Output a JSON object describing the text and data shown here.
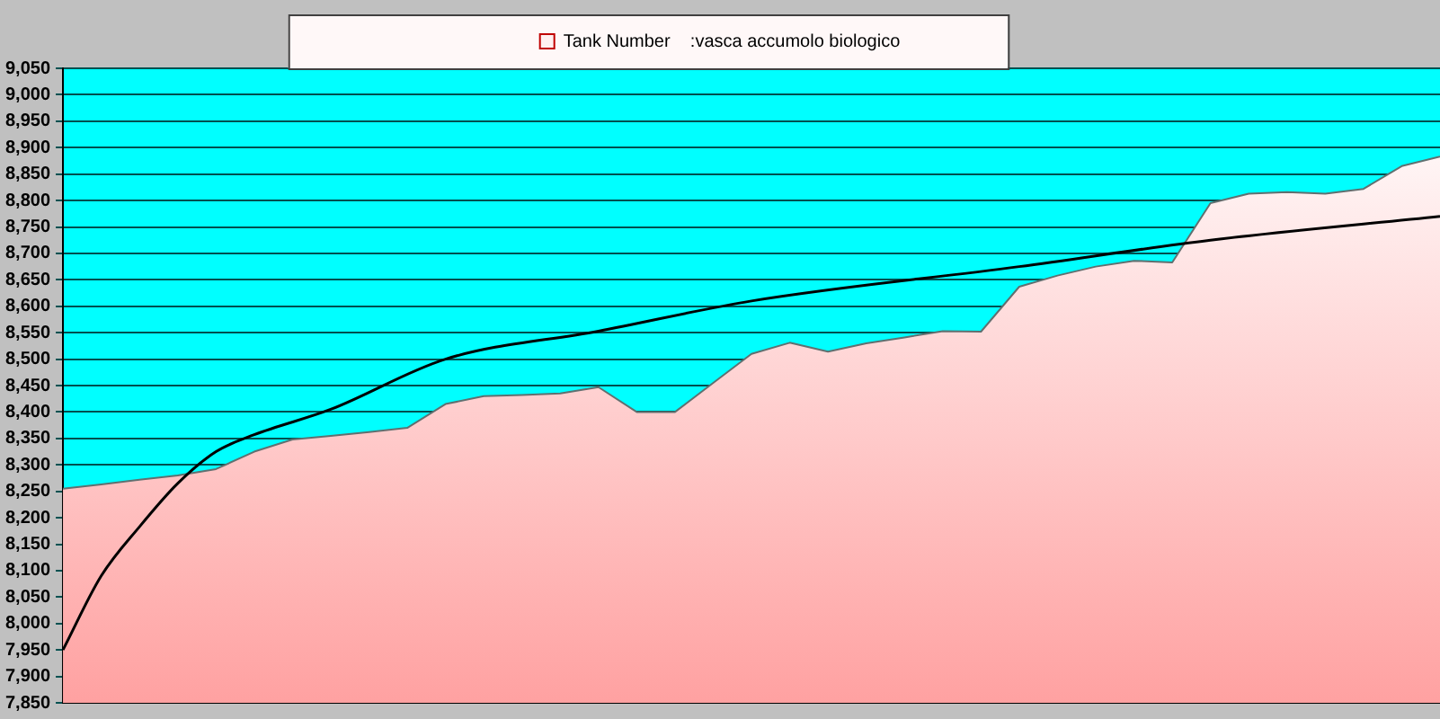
{
  "chart_data": {
    "type": "area",
    "categories": [
      null,
      null,
      null,
      null,
      null,
      null,
      null,
      null,
      null,
      null,
      null,
      null,
      null,
      null,
      null,
      null,
      null,
      null,
      null,
      null,
      null,
      null,
      null,
      null,
      null,
      null,
      null,
      null,
      null,
      null,
      null,
      null,
      null,
      null,
      null,
      null,
      null
    ],
    "series": [
      {
        "name": "Tank Number    :vasca accumolo biologico",
        "color": "#ffa0a0",
        "values": [
          8255,
          8263,
          8272,
          8280,
          8292,
          8325,
          8348,
          8355,
          8362,
          8370,
          8415,
          8430,
          8432,
          8435,
          8447,
          8400,
          8400,
          8455,
          8510,
          8531,
          8514,
          8530,
          8541,
          8553,
          8552,
          8637,
          8658,
          8675,
          8686,
          8683,
          8795,
          8813,
          8816,
          8813,
          8822,
          8865,
          8883
        ]
      },
      {
        "type": "line",
        "color": "#000000",
        "values": [
          7950,
          8090,
          8183,
          8265,
          8325,
          8357,
          null,
          8405,
          null,
          null,
          8500,
          null,
          null,
          null,
          8553,
          null,
          null,
          null,
          8610,
          null,
          null,
          null,
          null,
          null,
          null,
          8675,
          null,
          null,
          null,
          null,
          8725,
          null,
          null,
          null,
          null,
          null,
          8770
        ]
      }
    ],
    "ylim": [
      7850,
      9050
    ],
    "yticks": [
      {
        "value": 7850,
        "label": "7,850"
      },
      {
        "value": 7900,
        "label": "7,900"
      },
      {
        "value": 7950,
        "label": "7,950"
      },
      {
        "value": 8000,
        "label": "8,000"
      },
      {
        "value": 8050,
        "label": "8,050"
      },
      {
        "value": 8100,
        "label": "8,100"
      },
      {
        "value": 8150,
        "label": "8,150"
      },
      {
        "value": 8200,
        "label": "8,200"
      },
      {
        "value": 8250,
        "label": "8,250"
      },
      {
        "value": 8300,
        "label": "8,300"
      },
      {
        "value": 8350,
        "label": "8,350"
      },
      {
        "value": 8400,
        "label": "8,400"
      },
      {
        "value": 8450,
        "label": "8,450"
      },
      {
        "value": 8500,
        "label": "8,500"
      },
      {
        "value": 8550,
        "label": "8,550"
      },
      {
        "value": 8600,
        "label": "8,600"
      },
      {
        "value": 8650,
        "label": "8,650"
      },
      {
        "value": 8700,
        "label": "8,700"
      },
      {
        "value": 8750,
        "label": "8,750"
      },
      {
        "value": 8800,
        "label": "8,800"
      },
      {
        "value": 8850,
        "label": "8,850"
      },
      {
        "value": 8900,
        "label": "8,900"
      },
      {
        "value": 8950,
        "label": "8,950"
      },
      {
        "value": 9000,
        "label": "9,000"
      },
      {
        "value": 9050,
        "label": "9,050"
      }
    ],
    "grid": "y",
    "legend": "top",
    "tick_labels": "y",
    "marker": "none"
  }
}
